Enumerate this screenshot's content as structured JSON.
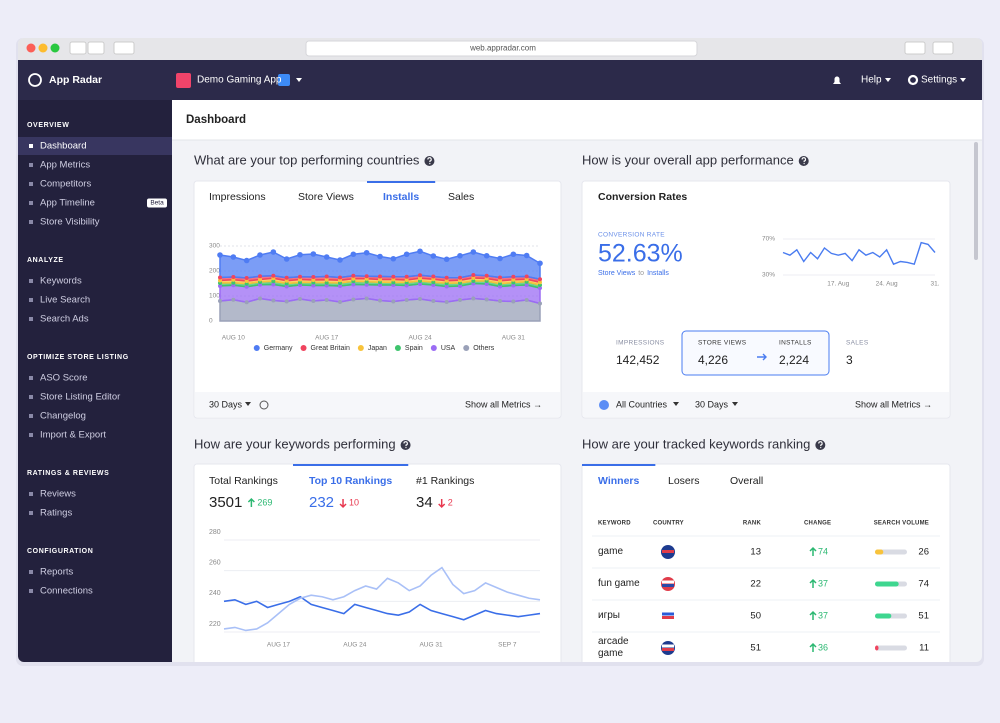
{
  "browser": {
    "url": "web.appradar.com"
  },
  "header": {
    "brand": "App Radar",
    "app": "Demo Gaming App",
    "help": "Help",
    "settings": "Settings"
  },
  "sidebar": {
    "sections": [
      {
        "title": "OVERVIEW",
        "items": [
          {
            "label": "Dashboard",
            "active": true
          },
          {
            "label": "App Metrics"
          },
          {
            "label": "Competitors"
          },
          {
            "label": "App Timeline",
            "badge": "Beta"
          },
          {
            "label": "Store Visibility"
          }
        ]
      },
      {
        "title": "ANALYZE",
        "items": [
          {
            "label": "Keywords"
          },
          {
            "label": "Live Search"
          },
          {
            "label": "Search Ads"
          }
        ]
      },
      {
        "title": "OPTIMIZE STORE LISTING",
        "items": [
          {
            "label": "ASO Score"
          },
          {
            "label": "Store Listing Editor"
          },
          {
            "label": "Changelog"
          },
          {
            "label": "Import & Export"
          }
        ]
      },
      {
        "title": "RATINGS & REVIEWS",
        "items": [
          {
            "label": "Reviews"
          },
          {
            "label": "Ratings"
          }
        ]
      },
      {
        "title": "CONFIGURATION",
        "items": [
          {
            "label": "Reports"
          },
          {
            "label": "Connections"
          }
        ]
      }
    ]
  },
  "page_title": "Dashboard",
  "countries": {
    "title": "What are your top performing countries",
    "tabs": [
      "Impressions",
      "Store Views",
      "Installs",
      "Sales"
    ],
    "active_tab": "Installs",
    "period": "30 Days",
    "link": "Show all Metrics →",
    "chart_data": {
      "type": "stacked-area",
      "categories": [
        null,
        "AUG 10",
        null,
        null,
        null,
        null,
        null,
        null,
        "AUG 17",
        null,
        null,
        null,
        null,
        null,
        null,
        "AUG 24",
        null,
        null,
        null,
        null,
        null,
        null,
        "AUG 31",
        null,
        null
      ],
      "ylim": [
        0,
        300
      ],
      "yticks": [
        0,
        100,
        200,
        300
      ],
      "grid": true,
      "series": [
        {
          "name": "Germany",
          "color": "#4f7cf3",
          "values": [
            90,
            80,
            70,
            85,
            95,
            75,
            88,
            92,
            78,
            70,
            86,
            94,
            80,
            72,
            90,
            96,
            82,
            74,
            88,
            92,
            80,
            76,
            90,
            84,
            64
          ]
        },
        {
          "name": "Great Britain",
          "color": "#f0445e",
          "values": [
            12,
            11,
            12,
            13,
            10,
            12,
            11,
            12,
            13,
            11,
            12,
            10,
            12,
            11,
            13,
            12,
            11,
            12,
            10,
            12,
            11,
            13,
            12,
            11,
            12
          ]
        },
        {
          "name": "Japan",
          "color": "#f8c33b",
          "values": [
            10,
            12,
            11,
            10,
            12,
            11,
            12,
            10,
            12,
            11,
            10,
            12,
            11,
            12,
            10,
            11,
            12,
            10,
            11,
            12,
            10,
            12,
            11,
            10,
            11
          ]
        },
        {
          "name": "Spain",
          "color": "#3ec46d",
          "values": [
            12,
            10,
            12,
            11,
            13,
            12,
            10,
            12,
            11,
            12,
            13,
            12,
            11,
            10,
            12,
            12,
            11,
            13,
            12,
            10,
            12,
            11,
            12,
            13,
            12
          ]
        },
        {
          "name": "USA",
          "color": "#9b6cf4",
          "values": [
            60,
            58,
            62,
            55,
            64,
            60,
            56,
            62,
            58,
            64,
            60,
            55,
            62,
            66,
            58,
            60,
            64,
            62,
            56,
            60,
            62,
            58,
            64,
            60,
            62
          ]
        },
        {
          "name": "Others",
          "color": "#9aa1b8",
          "values": [
            80,
            85,
            75,
            90,
            82,
            78,
            88,
            80,
            84,
            76,
            86,
            90,
            82,
            78,
            84,
            88,
            80,
            76,
            84,
            90,
            86,
            80,
            78,
            84,
            70
          ]
        }
      ]
    }
  },
  "performance": {
    "title": "How is your overall app performance",
    "card_title": "Conversion Rates",
    "kpi_label": "CONVERSION RATE",
    "kpi_value": "52.63%",
    "kpi_from": "Store Views",
    "kpi_to": "to",
    "kpi_target": "Installs",
    "metrics": [
      {
        "label": "IMPRESSIONS",
        "value": "142,452"
      },
      {
        "label": "STORE VIEWS",
        "value": "4,226"
      },
      {
        "label": "INSTALLS",
        "value": "2,224"
      },
      {
        "label": "SALES",
        "value": "3"
      }
    ],
    "country_filter": "All Countries",
    "period": "30 Days",
    "link": "Show all Metrics →",
    "chart_data": {
      "type": "line",
      "categories": [
        null,
        null,
        null,
        null,
        null,
        null,
        null,
        null,
        "17. Aug",
        null,
        null,
        null,
        null,
        null,
        null,
        "24. Aug",
        null,
        null,
        null,
        null,
        null,
        null,
        "31."
      ],
      "ylim": [
        30,
        70
      ],
      "yticks": [
        {
          "value": 70,
          "label": "70%"
        },
        {
          "value": 30,
          "label": "30%"
        }
      ],
      "color": "#4a7cf0",
      "values": [
        55,
        52,
        58,
        45,
        55,
        48,
        60,
        54,
        52,
        54,
        46,
        58,
        52,
        55,
        50,
        58,
        42,
        45,
        44,
        42,
        66,
        64,
        55
      ]
    }
  },
  "keywords": {
    "title": "How are your keywords performing",
    "active_tab": "Top 10 Rankings",
    "tabs": [
      {
        "label": "Total Rankings",
        "value": 3501,
        "change": 269,
        "trend": "up"
      },
      {
        "label": "Top 10 Rankings",
        "value": 232,
        "change": 10,
        "trend": "down"
      },
      {
        "label": "#1 Rankings",
        "value": 34,
        "change": 2,
        "trend": "down"
      }
    ],
    "chart_data": {
      "type": "line",
      "categories": [
        null,
        null,
        null,
        null,
        null,
        "AUG 17",
        null,
        null,
        null,
        null,
        null,
        null,
        "AUG 24",
        null,
        null,
        null,
        null,
        null,
        null,
        "AUG 31",
        null,
        null,
        null,
        null,
        null,
        null,
        "SEP 7",
        null,
        null,
        null
      ],
      "ylim": [
        210,
        290
      ],
      "yticks": [
        220,
        240,
        260,
        280
      ],
      "grid": true,
      "series": [
        {
          "color": "#3a6ee8",
          "values": [
            240,
            241,
            238,
            240,
            236,
            238,
            240,
            243,
            238,
            236,
            234,
            232,
            238,
            236,
            234,
            232,
            231,
            233,
            238,
            234,
            232,
            230,
            228,
            231,
            234,
            232,
            231,
            230,
            231,
            232
          ]
        },
        {
          "color": "#a9c0f7",
          "values": [
            222,
            223,
            221,
            222,
            226,
            232,
            238,
            242,
            244,
            243,
            241,
            243,
            247,
            250,
            248,
            255,
            252,
            247,
            250,
            257,
            262,
            251,
            245,
            247,
            252,
            249,
            246,
            244,
            242,
            241
          ]
        }
      ]
    }
  },
  "ranking": {
    "title": "How are your tracked keywords ranking",
    "tabs": [
      "Winners",
      "Losers",
      "Overall"
    ],
    "active_tab": "Winners",
    "columns": [
      "KEYWORD",
      "COUNTRY",
      "RANK",
      "CHANGE",
      "SEARCH VOLUME"
    ],
    "volume_max": 100,
    "rows": [
      {
        "keyword": "game",
        "rank": 13,
        "change": 74,
        "volume": 26,
        "color": "#f8c33b"
      },
      {
        "keyword": "fun game",
        "rank": 22,
        "change": 37,
        "volume": 74,
        "color": "#3ed68f"
      },
      {
        "keyword": "игры",
        "rank": 50,
        "change": 37,
        "volume": 51,
        "color": "#3ed68f"
      },
      {
        "keyword": "arcade game",
        "rank": 51,
        "change": 36,
        "volume": 11,
        "color": "#f0445e"
      }
    ]
  }
}
